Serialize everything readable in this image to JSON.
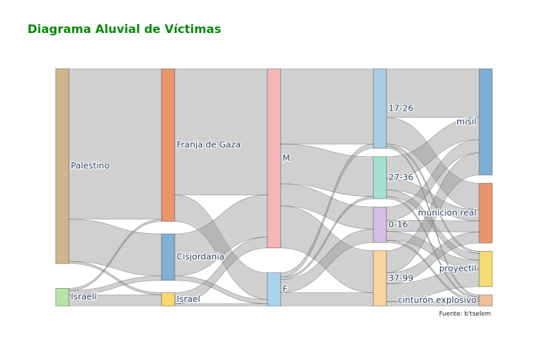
{
  "chart_data": {
    "type": "sankey",
    "title": "Diagrama Aluvial de Víctimas",
    "source_note": "Fuente: b'tselem",
    "stages": [
      [
        {
          "id": "pal",
          "label": "Palestino",
          "color": "#d2b48c"
        },
        {
          "id": "isr",
          "label": "Israelí",
          "color": "#b7e4a7"
        }
      ],
      [
        {
          "id": "gaza",
          "label": "Franja de Gaza",
          "color": "#e8956a"
        },
        {
          "id": "cis",
          "label": "Cisjordania",
          "color": "#7fb0d5"
        },
        {
          "id": "israel",
          "label": "Israel",
          "color": "#f9d96b"
        }
      ],
      [
        {
          "id": "m",
          "label": "M",
          "color": "#f4b6b6"
        },
        {
          "id": "f",
          "label": "F",
          "color": "#a9d3ef"
        }
      ],
      [
        {
          "id": "a1726",
          "label": "17-26",
          "color": "#a9cbe3"
        },
        {
          "id": "a2736",
          "label": "27-36",
          "color": "#a5e0d3"
        },
        {
          "id": "a016",
          "label": "0-16",
          "color": "#d7bde2"
        },
        {
          "id": "a3799",
          "label": "37-99",
          "color": "#fbd49f"
        }
      ],
      [
        {
          "id": "misil",
          "label": "misil",
          "color": "#7bafd4"
        },
        {
          "id": "municion",
          "label": "munición real",
          "color": "#e8956a"
        },
        {
          "id": "proyectil",
          "label": "proyectil",
          "color": "#f7db73"
        },
        {
          "id": "cinturon",
          "label": "cinturón explosivo",
          "color": "#efbf98"
        }
      ]
    ],
    "links": [
      {
        "source": "pal",
        "target": "gaza",
        "value": 68
      },
      {
        "source": "pal",
        "target": "cis",
        "value": 19
      },
      {
        "source": "pal",
        "target": "israel",
        "value": 1
      },
      {
        "source": "isr",
        "target": "gaza",
        "value": 1
      },
      {
        "source": "isr",
        "target": "cis",
        "value": 2
      },
      {
        "source": "isr",
        "target": "israel",
        "value": 5
      },
      {
        "source": "gaza",
        "target": "m",
        "value": 57
      },
      {
        "source": "gaza",
        "target": "f",
        "value": 12
      },
      {
        "source": "cis",
        "target": "m",
        "value": 19
      },
      {
        "source": "cis",
        "target": "f",
        "value": 2
      },
      {
        "source": "israel",
        "target": "m",
        "value": 5
      },
      {
        "source": "israel",
        "target": "f",
        "value": 1
      },
      {
        "source": "m",
        "target": "a1726",
        "value": 34
      },
      {
        "source": "m",
        "target": "a2736",
        "value": 18
      },
      {
        "source": "m",
        "target": "a016",
        "value": 10
      },
      {
        "source": "m",
        "target": "a3799",
        "value": 19
      },
      {
        "source": "f",
        "target": "a1726",
        "value": 2
      },
      {
        "source": "f",
        "target": "a2736",
        "value": 1
      },
      {
        "source": "f",
        "target": "a016",
        "value": 6
      },
      {
        "source": "f",
        "target": "a3799",
        "value": 6
      },
      {
        "source": "a1726",
        "target": "misil",
        "value": 22
      },
      {
        "source": "a1726",
        "target": "municion",
        "value": 12
      },
      {
        "source": "a1726",
        "target": "proyectil",
        "value": 1
      },
      {
        "source": "a1726",
        "target": "cinturon",
        "value": 1
      },
      {
        "source": "a2736",
        "target": "misil",
        "value": 10
      },
      {
        "source": "a2736",
        "target": "municion",
        "value": 5
      },
      {
        "source": "a2736",
        "target": "proyectil",
        "value": 3
      },
      {
        "source": "a2736",
        "target": "cinturon",
        "value": 1
      },
      {
        "source": "a016",
        "target": "misil",
        "value": 6
      },
      {
        "source": "a016",
        "target": "municion",
        "value": 5
      },
      {
        "source": "a016",
        "target": "proyectil",
        "value": 4
      },
      {
        "source": "a016",
        "target": "cinturon",
        "value": 1
      },
      {
        "source": "a3799",
        "target": "misil",
        "value": 10
      },
      {
        "source": "a3799",
        "target": "municion",
        "value": 5
      },
      {
        "source": "a3799",
        "target": "proyectil",
        "value": 8
      },
      {
        "source": "a3799",
        "target": "cinturon",
        "value": 2
      }
    ]
  }
}
